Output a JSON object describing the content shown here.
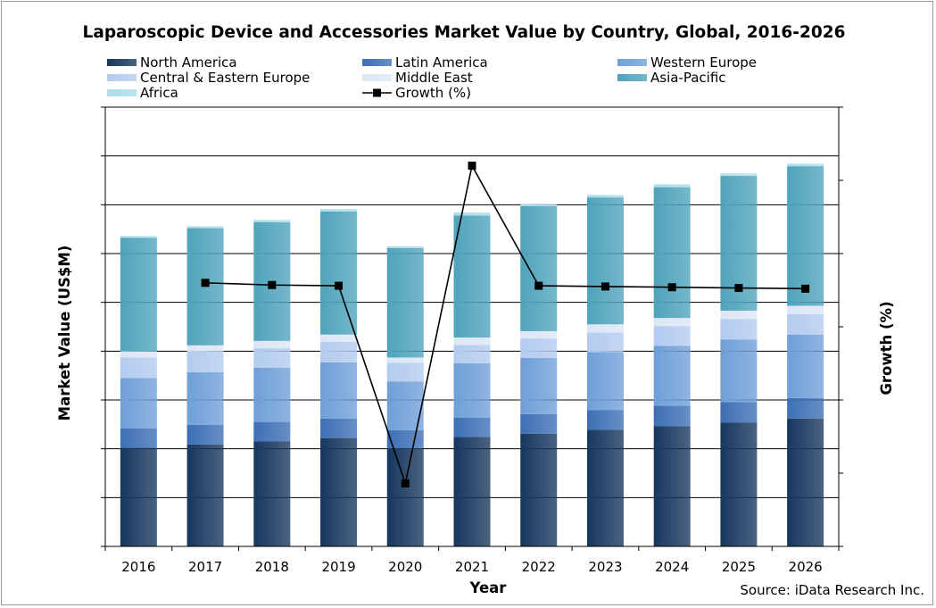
{
  "chart_data": {
    "type": "bar",
    "stacked": true,
    "title": "Laparoscopic Device and Accessories Market Value by Country, Global, 2016-2026",
    "xlabel": "Year",
    "ylabel": "Market Value (US$M)",
    "y2label": "Growth (%)",
    "source": "Source: iData Research Inc.",
    "legend_position": "top",
    "grid": true,
    "ylim": [
      0,
      9
    ],
    "y2lim": [
      0,
      6
    ],
    "categories": [
      "2016",
      "2017",
      "2018",
      "2019",
      "2020",
      "2021",
      "2022",
      "2023",
      "2024",
      "2025",
      "2026"
    ],
    "series": [
      {
        "name": "North America",
        "color": "#17375e",
        "values": [
          2.02,
          2.09,
          2.15,
          2.22,
          2.01,
          2.24,
          2.31,
          2.39,
          2.46,
          2.54,
          2.62
        ]
      },
      {
        "name": "Latin America",
        "color": "#3d6fb5",
        "values": [
          0.4,
          0.4,
          0.4,
          0.4,
          0.37,
          0.4,
          0.4,
          0.4,
          0.42,
          0.42,
          0.42
        ]
      },
      {
        "name": "Western Europe",
        "color": "#6f9fd8",
        "values": [
          1.03,
          1.08,
          1.11,
          1.15,
          1.0,
          1.11,
          1.15,
          1.19,
          1.23,
          1.28,
          1.3
        ]
      },
      {
        "name": "Central & Eastern Europe",
        "color": "#b3cbef",
        "values": [
          0.42,
          0.42,
          0.4,
          0.42,
          0.38,
          0.38,
          0.4,
          0.4,
          0.4,
          0.42,
          0.42
        ]
      },
      {
        "name": "Middle East",
        "color": "#dbe6f6",
        "values": [
          0.13,
          0.13,
          0.15,
          0.15,
          0.11,
          0.15,
          0.15,
          0.17,
          0.17,
          0.17,
          0.17
        ]
      },
      {
        "name": "Asia-Pacific",
        "color": "#4fa3bb",
        "values": [
          2.32,
          2.4,
          2.43,
          2.52,
          2.24,
          2.5,
          2.56,
          2.6,
          2.68,
          2.76,
          2.86
        ]
      },
      {
        "name": "Africa",
        "color": "#aadcea",
        "values": [
          0.04,
          0.04,
          0.05,
          0.05,
          0.04,
          0.06,
          0.04,
          0.05,
          0.06,
          0.05,
          0.05
        ]
      }
    ],
    "line_series": {
      "name": "Growth (%)",
      "color": "#000000",
      "values": [
        null,
        3.6,
        3.57,
        3.56,
        0.86,
        5.2,
        3.56,
        3.55,
        3.54,
        3.53,
        3.52
      ]
    }
  }
}
